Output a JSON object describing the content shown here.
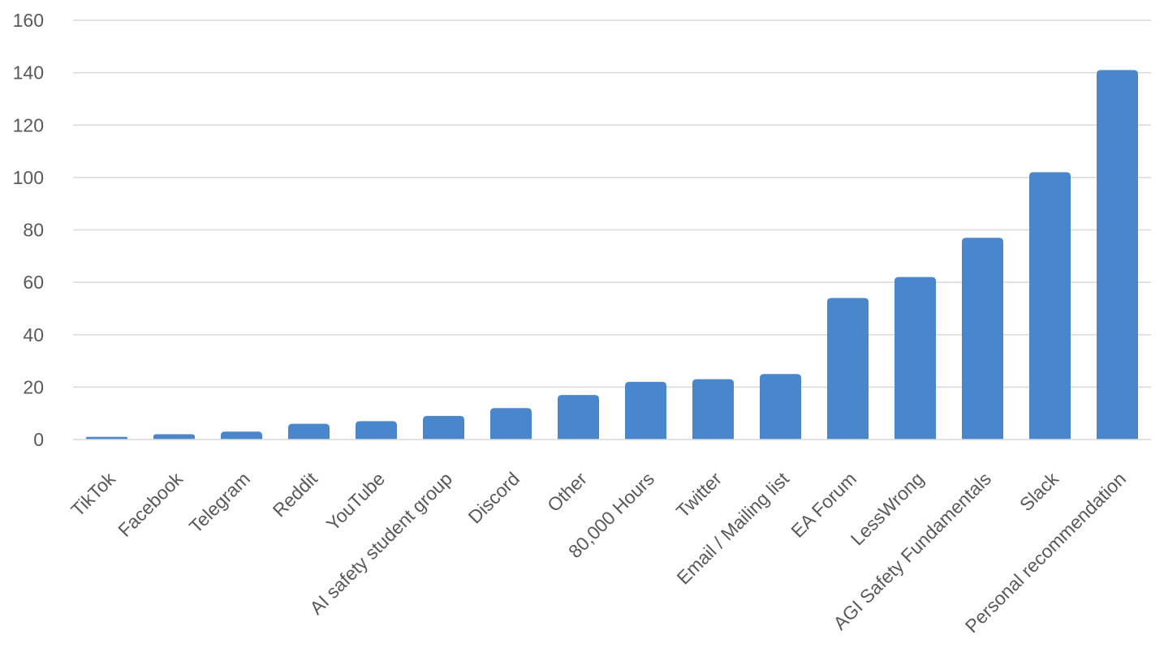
{
  "chart_data": {
    "type": "bar",
    "categories": [
      "TikTok",
      "Facebook",
      "Telegram",
      "Reddit",
      "YouTube",
      "AI safety student group",
      "Discord",
      "Other",
      "80,000 Hours",
      "Twitter",
      "Email / Mailing list",
      "EA Forum",
      "LessWrong",
      "AGI Safety Fundamentals",
      "Slack",
      "Personal recommendation"
    ],
    "values": [
      1,
      2,
      3,
      6,
      7,
      9,
      12,
      17,
      22,
      23,
      25,
      54,
      62,
      77,
      102,
      141
    ],
    "title": "",
    "xlabel": "",
    "ylabel": "",
    "ylim": [
      0,
      160
    ],
    "yticks": [
      0,
      20,
      40,
      60,
      80,
      100,
      120,
      140,
      160
    ],
    "grid": true,
    "legend": "none",
    "bar_color": "#4a86cc"
  }
}
